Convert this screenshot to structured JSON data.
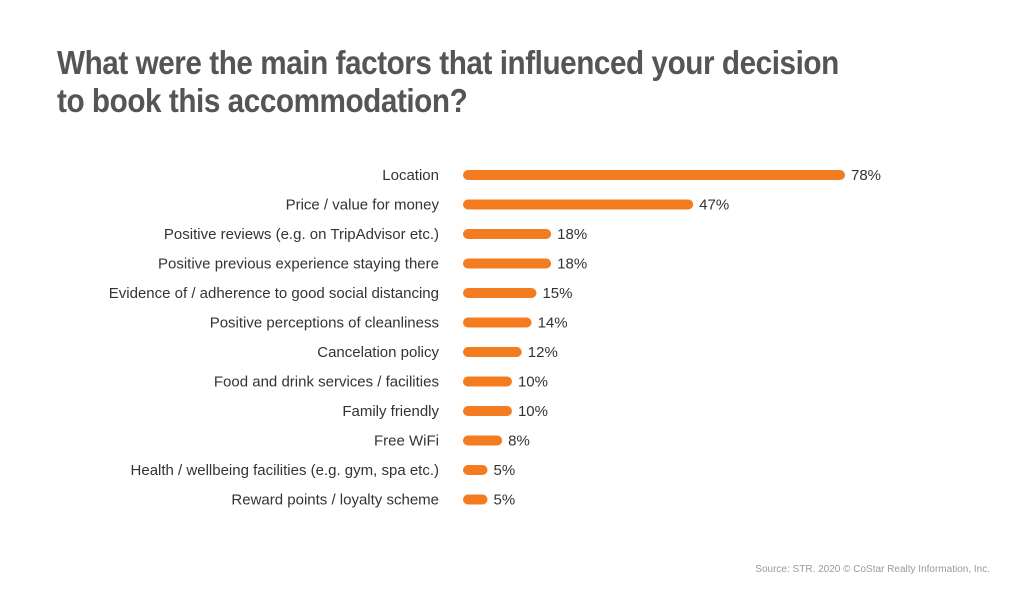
{
  "page": {
    "title": "What were the main factors that influenced your decision to book this accommodation?",
    "source": "Source: STR. 2020 © CoStar Realty Information, Inc."
  },
  "colors": {
    "bar": "#f47c20",
    "text": "#333333",
    "title": "#555555",
    "source": "#9a9a9a"
  },
  "chart_data": {
    "type": "bar",
    "orientation": "horizontal",
    "title": "What were the main factors that influenced your decision to book this accommodation?",
    "xlabel": "",
    "ylabel": "",
    "value_suffix": "%",
    "xlim": [
      0,
      78
    ],
    "grid": false,
    "legend": "none",
    "categories": [
      "Location",
      "Price / value for money",
      "Positive reviews (e.g. on TripAdvisor etc.)",
      "Positive previous experience staying there",
      "Evidence of / adherence to good social distancing",
      "Positive perceptions of cleanliness",
      "Cancelation policy",
      "Food and drink services / facilities",
      "Family friendly",
      "Free WiFi",
      "Health / wellbeing facilities (e.g. gym, spa etc.)",
      "Reward points / loyalty scheme"
    ],
    "values": [
      78,
      47,
      18,
      18,
      15,
      14,
      12,
      10,
      10,
      8,
      5,
      5
    ]
  }
}
